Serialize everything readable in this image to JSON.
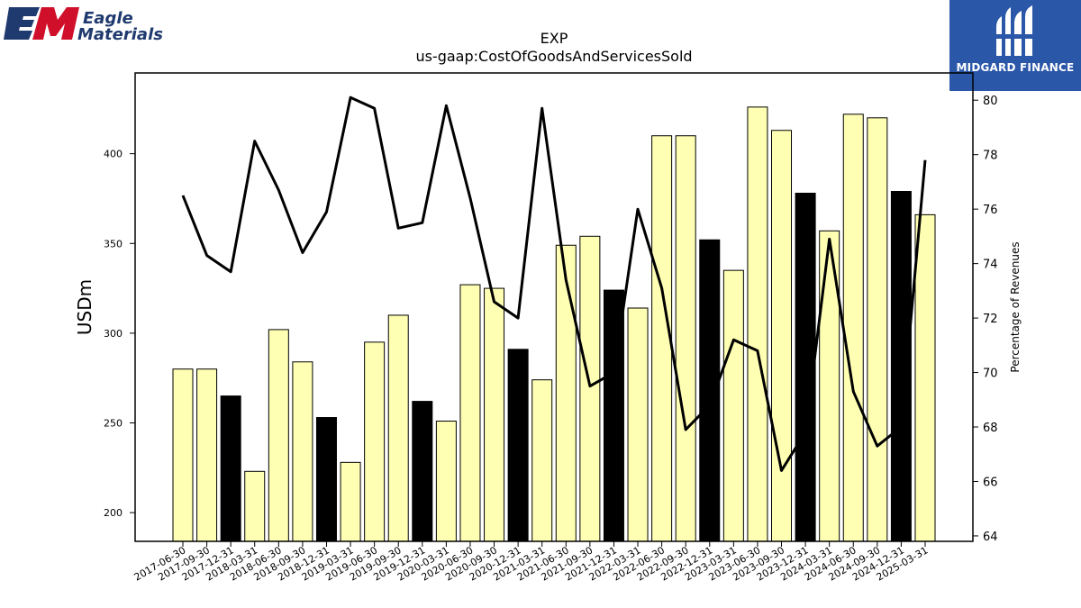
{
  "brand": {
    "company_line1": "Eagle",
    "company_line2": "Materials",
    "em_letters": "EM",
    "publisher": "MIDGARD FINANCE",
    "publisher_color": "#2b57a8",
    "company_navy": "#1f3a6e",
    "company_red": "#d0102a"
  },
  "chart_data": {
    "type": "bar",
    "title": "EXP",
    "subtitle": "us-gaap:CostOfGoodsAndServicesSold",
    "ylabel": "USDm",
    "y2label": "Percentage of Revenues",
    "ylim": [
      184,
      445
    ],
    "y2lim": [
      63.8,
      81.0
    ],
    "yticks": [
      200,
      250,
      300,
      350,
      400
    ],
    "y2ticks": [
      64,
      66,
      68,
      70,
      72,
      74,
      76,
      78,
      80
    ],
    "bar_colors": {
      "default": "#ffffb4",
      "highlight": "#000000"
    },
    "categories": [
      "2017-06-30",
      "2017-09-30",
      "2017-12-31",
      "2018-03-31",
      "2018-06-30",
      "2018-09-30",
      "2018-12-31",
      "2019-03-31",
      "2019-06-30",
      "2019-09-30",
      "2019-12-31",
      "2020-03-31",
      "2020-06-30",
      "2020-09-30",
      "2020-12-31",
      "2021-03-31",
      "2021-06-30",
      "2021-09-30",
      "2021-12-31",
      "2022-03-31",
      "2022-06-30",
      "2022-09-30",
      "2022-12-31",
      "2023-03-31",
      "2023-06-30",
      "2023-09-30",
      "2023-12-31",
      "2024-03-31",
      "2024-06-30",
      "2024-09-30",
      "2024-12-31",
      "2025-03-31"
    ],
    "series": [
      {
        "type": "bar",
        "values": [
          280,
          280,
          265,
          223,
          302,
          284,
          253,
          228,
          295,
          310,
          262,
          251,
          327,
          325,
          291,
          274,
          349,
          354,
          324,
          314,
          410,
          410,
          352,
          335,
          426,
          413,
          378,
          357,
          422,
          420,
          379,
          366
        ],
        "highlight": [
          false,
          false,
          true,
          false,
          false,
          false,
          true,
          false,
          false,
          false,
          true,
          false,
          false,
          false,
          true,
          false,
          false,
          false,
          true,
          false,
          false,
          false,
          true,
          false,
          false,
          false,
          true,
          false,
          false,
          false,
          true,
          false
        ]
      },
      {
        "type": "line",
        "axis": "right",
        "color": "#000000",
        "values": [
          76.5,
          74.3,
          73.7,
          78.5,
          76.7,
          74.4,
          75.9,
          80.1,
          79.7,
          75.3,
          75.5,
          79.8,
          76.4,
          72.6,
          72.0,
          79.7,
          73.4,
          69.5,
          70.0,
          76.0,
          73.1,
          67.9,
          68.8,
          71.2,
          70.8,
          66.4,
          67.8,
          74.9,
          69.3,
          67.3,
          68.0,
          77.8
        ]
      }
    ]
  }
}
